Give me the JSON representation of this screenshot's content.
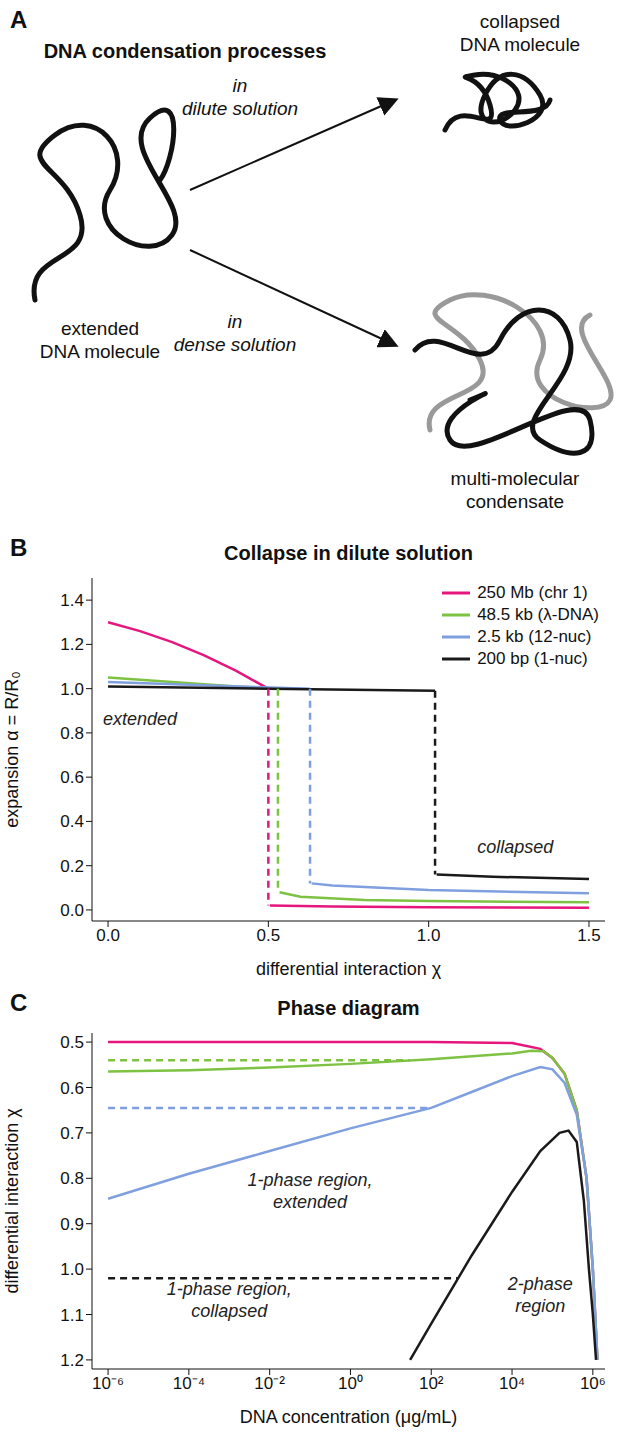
{
  "diagram": {
    "panel_label": "A",
    "title": "DNA condensation processes",
    "start": [
      "extended",
      "DNA molecule"
    ],
    "arrows": [
      {
        "label": [
          "in",
          "dilute solution"
        ],
        "end": [
          "collapsed",
          "DNA molecule"
        ]
      },
      {
        "label": [
          "in",
          "dense solution"
        ],
        "end": [
          "multi-molecular",
          "condensate"
        ]
      }
    ]
  },
  "chart_data": [
    {
      "type": "line",
      "panel_label": "B",
      "title": "Collapse in dilute solution",
      "x_label": "differential interaction χ",
      "y_label": "expansion α = R/R₀",
      "xlim": [
        -0.05,
        1.55
      ],
      "ylim": [
        -0.05,
        1.5
      ],
      "xticks": [
        {
          "value": 0,
          "label": "0.0"
        },
        0.5,
        {
          "value": 1,
          "label": "1.0"
        },
        1.5
      ],
      "yticks": [
        {
          "value": 0,
          "label": "0.0"
        },
        0.2,
        0.4,
        0.6,
        0.8,
        {
          "value": 1,
          "label": "1.0"
        },
        1.2,
        1.4
      ],
      "grid": false,
      "legend": "upper right",
      "annotations": [
        {
          "lines": [
            "extended"
          ],
          "x": 0.1,
          "y": 0.86
        },
        {
          "lines": [
            "collapsed"
          ],
          "x": 1.27,
          "y": 0.28
        }
      ],
      "series": [
        {
          "name": "250 Mb (chr 1)",
          "color": "#e5177e",
          "x": [
            0,
            0.1,
            0.2,
            0.3,
            0.4,
            0.45,
            0.5,
            0.5,
            0.505,
            0.7,
            1.0,
            1.5
          ],
          "values": [
            1.3,
            1.26,
            1.21,
            1.15,
            1.08,
            1.04,
            1.0,
            null,
            0.02,
            0.015,
            0.012,
            0.01
          ],
          "transition": {
            "x": [
              0.5,
              0.5
            ],
            "values": [
              1.0,
              0.02
            ]
          }
        },
        {
          "name": "48.5 kb (λ-DNA)",
          "color": "#7dc242",
          "x": [
            0,
            0.2,
            0.4,
            0.53,
            0.53,
            0.535,
            0.6,
            0.8,
            1.0,
            1.5
          ],
          "values": [
            1.05,
            1.03,
            1.01,
            1.0,
            null,
            0.08,
            0.06,
            0.045,
            0.04,
            0.035
          ],
          "transition": {
            "x": [
              0.53,
              0.53
            ],
            "values": [
              1.0,
              0.08
            ]
          }
        },
        {
          "name": "2.5 kb (12-nuc)",
          "color": "#7f9fdf",
          "x": [
            0,
            0.3,
            0.63,
            0.63,
            0.635,
            0.7,
            1.0,
            1.5
          ],
          "values": [
            1.03,
            1.015,
            1.0,
            null,
            0.12,
            0.11,
            0.09,
            0.075
          ],
          "transition": {
            "x": [
              0.63,
              0.63
            ],
            "values": [
              1.0,
              0.12
            ]
          }
        },
        {
          "name": "200 bp (1-nuc)",
          "color": "#1a1a1a",
          "x": [
            0,
            0.5,
            1.02,
            1.02,
            1.025,
            1.2,
            1.5
          ],
          "values": [
            1.01,
            1.0,
            0.99,
            null,
            0.16,
            0.15,
            0.14
          ],
          "transition": {
            "x": [
              1.02,
              1.02
            ],
            "values": [
              0.99,
              0.16
            ]
          }
        }
      ]
    },
    {
      "type": "line",
      "panel_label": "C",
      "title": "Phase diagram",
      "x_label": "DNA concentration (μg/mL)",
      "y_label": "differential interaction χ",
      "log": "x",
      "xlim": [
        4e-07,
        2000000.0
      ],
      "ylim": [
        1.22,
        0.48
      ],
      "xticks": [
        {
          "value": 1e-06,
          "label": "10⁻⁶"
        },
        {
          "value": 0.0001,
          "label": "10⁻⁴"
        },
        {
          "value": 0.01,
          "label": "10⁻²"
        },
        {
          "value": 1,
          "label": "10⁰"
        },
        {
          "value": 100,
          "label": "10²"
        },
        {
          "value": 10000,
          "label": "10⁴"
        },
        {
          "value": 1000000,
          "label": "10⁶"
        }
      ],
      "yticks": [
        0.5,
        0.6,
        0.7,
        0.8,
        0.9,
        {
          "value": 1,
          "label": "1.0"
        },
        1.1,
        1.2
      ],
      "grid": false,
      "annotations": [
        {
          "lines": [
            "1-phase region,",
            "extended"
          ],
          "x": 0.1,
          "y": 0.83
        },
        {
          "lines": [
            "1-phase region,",
            "collapsed"
          ],
          "x": 0.001,
          "y": 1.07
        },
        {
          "lines": [
            "2-phase",
            "region"
          ],
          "x": 50000,
          "y": 1.06
        }
      ],
      "series": [
        {
          "color": "#e5177e",
          "line_style": "solid",
          "x": [
            1e-06,
            0.01,
            100,
            10000,
            50000,
            100000,
            200000,
            400000,
            700000,
            1000000,
            1300000
          ],
          "values": [
            0.5,
            0.5,
            0.5,
            0.502,
            0.515,
            0.535,
            0.57,
            0.65,
            0.8,
            1.0,
            1.2
          ]
        },
        {
          "color": "#7dc242",
          "line_style": "solid",
          "x": [
            1e-06,
            0.0001,
            0.01,
            1,
            100,
            10000,
            30000,
            60000,
            100000,
            200000,
            400000,
            700000,
            1000000,
            1300000
          ],
          "values": [
            0.565,
            0.562,
            0.556,
            0.548,
            0.538,
            0.525,
            0.519,
            0.52,
            0.535,
            0.57,
            0.65,
            0.8,
            1.0,
            1.2
          ]
        },
        {
          "color": "#7dc242",
          "line_style": "dashed",
          "x": [
            1e-06,
            30
          ],
          "values": [
            0.54,
            0.54
          ]
        },
        {
          "color": "#7f9fdf",
          "line_style": "solid",
          "x": [
            1e-06,
            0.0001,
            0.01,
            1,
            100,
            1000,
            10000,
            50000,
            100000,
            200000,
            400000,
            700000,
            1000000,
            1300000
          ],
          "values": [
            0.845,
            0.79,
            0.74,
            0.69,
            0.645,
            0.61,
            0.575,
            0.555,
            0.56,
            0.59,
            0.66,
            0.8,
            1.0,
            1.2
          ]
        },
        {
          "color": "#7f9fdf",
          "line_style": "dashed",
          "x": [
            1e-06,
            100
          ],
          "values": [
            0.645,
            0.645
          ]
        },
        {
          "color": "#1a1a1a",
          "line_style": "solid",
          "x": [
            30,
            100,
            1000,
            10000,
            50000,
            150000,
            250000,
            400000,
            600000,
            800000,
            1000000,
            1200000
          ],
          "values": [
            1.2,
            1.12,
            0.97,
            0.83,
            0.74,
            0.7,
            0.695,
            0.72,
            0.85,
            1.0,
            1.1,
            1.2
          ]
        },
        {
          "color": "#1a1a1a",
          "line_style": "dashed",
          "x": [
            1e-06,
            450
          ],
          "values": [
            1.02,
            1.02
          ]
        }
      ]
    }
  ]
}
